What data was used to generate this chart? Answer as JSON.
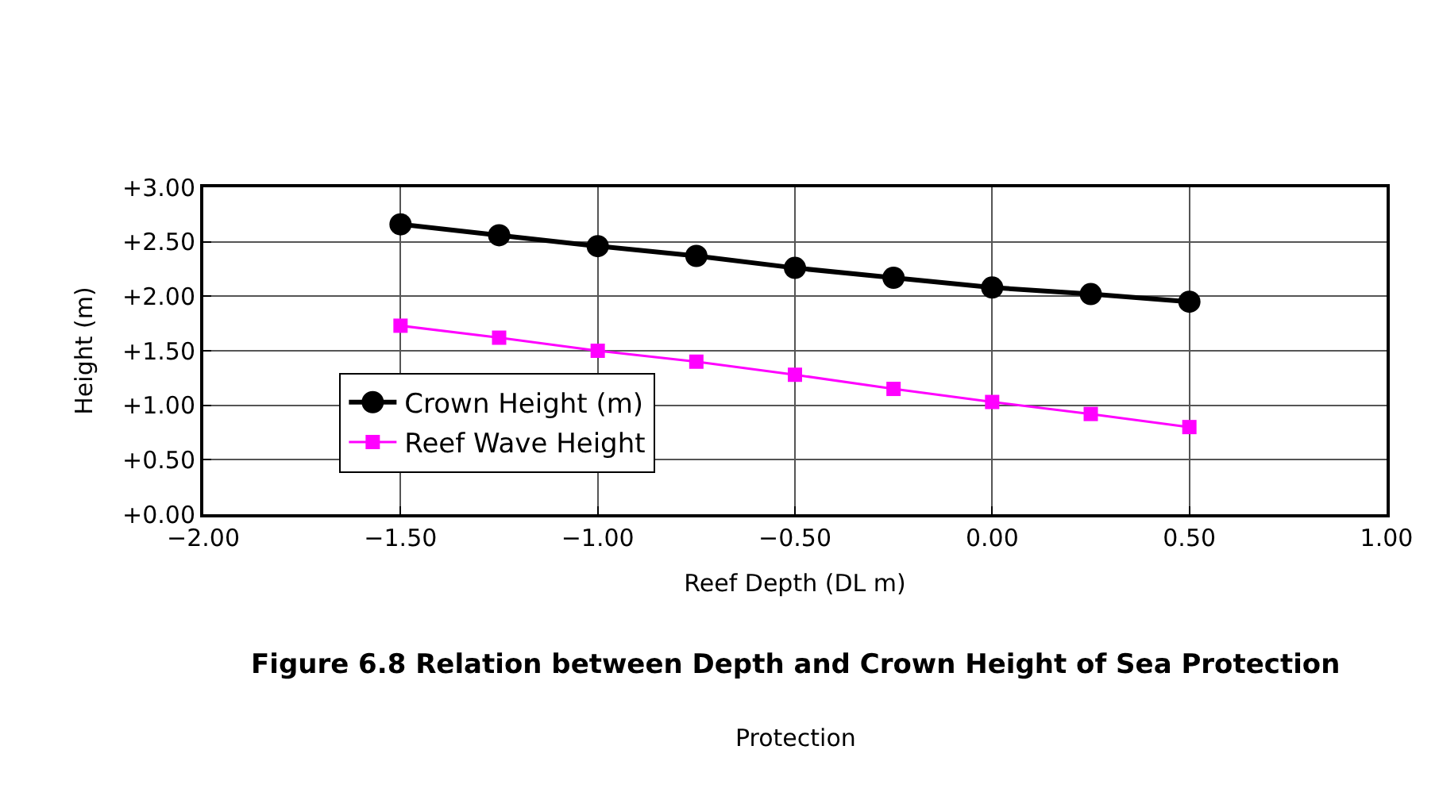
{
  "chart_data": {
    "type": "line",
    "title": "Figure 6.8 Relation between Depth and Crown Height of Sea Protection",
    "annotations": [
      "Protection"
    ],
    "xlabel": "Reef Depth (DL m)",
    "ylabel": "Height (m)",
    "x": [
      -1.5,
      -1.25,
      -1.0,
      -0.75,
      -0.5,
      -0.25,
      0.0,
      0.25,
      0.5
    ],
    "series": [
      {
        "name": "Crown Height (m)",
        "color": "#000000",
        "marker": "circle",
        "values": [
          2.66,
          2.56,
          2.46,
          2.37,
          2.26,
          2.17,
          2.08,
          2.02,
          1.95
        ]
      },
      {
        "name": "Reef Wave Height",
        "color": "#ff00ff",
        "marker": "square",
        "values": [
          1.73,
          1.62,
          1.5,
          1.4,
          1.28,
          1.15,
          1.03,
          0.92,
          0.8
        ]
      }
    ],
    "xlim": [
      -2.0,
      1.0
    ],
    "xticks": [
      {
        "value": -2.0,
        "label": "−2.00"
      },
      {
        "value": -1.5,
        "label": "−1.50"
      },
      {
        "value": -1.0,
        "label": "−1.00"
      },
      {
        "value": -0.5,
        "label": "−0.50"
      },
      {
        "value": 0.0,
        "label": "0.00"
      },
      {
        "value": 0.5,
        "label": "0.50"
      },
      {
        "value": 1.0,
        "label": "1.00"
      }
    ],
    "ylim": [
      0,
      3
    ],
    "yticks": [
      {
        "value": 0,
        "label": "+0.00"
      },
      {
        "value": 0.5,
        "label": "+0.50"
      },
      {
        "value": 1.0,
        "label": "+1.00"
      },
      {
        "value": 1.5,
        "label": "+1.50"
      },
      {
        "value": 2.0,
        "label": "+2.00"
      },
      {
        "value": 2.5,
        "label": "+2.50"
      },
      {
        "value": 3.0,
        "label": "+3.00"
      }
    ],
    "grid": true,
    "legend": "left",
    "line_style": "solid"
  }
}
